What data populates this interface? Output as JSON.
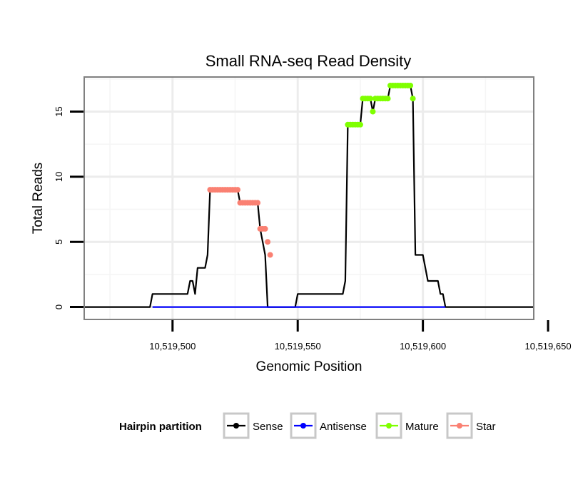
{
  "chart_data": {
    "type": "line",
    "title": "Small RNA-seq Read Density",
    "xlabel": "Genomic Position",
    "ylabel": "Total Reads",
    "xlim": [
      10519465,
      10519644
    ],
    "ylim": [
      -0.9,
      17.6
    ],
    "x_ticks": [
      10519500,
      10519550,
      10519600,
      10519650
    ],
    "x_tick_labels": [
      "10,519,500",
      "10,519,550",
      "10,519,600",
      "10,519,650"
    ],
    "y_ticks": [
      0,
      5,
      10,
      15
    ],
    "y_tick_labels": [
      "0",
      "5",
      "10",
      "15"
    ],
    "grid": true,
    "legend": {
      "title": "Hairpin partition",
      "position": "bottom",
      "entries": [
        "Sense",
        "Antisense",
        "Mature",
        "Star"
      ]
    },
    "series": [
      {
        "name": "Sense",
        "color": "#000000",
        "marker": "none",
        "points": [
          [
            10519465,
            0
          ],
          [
            10519491,
            0
          ],
          [
            10519492,
            1
          ],
          [
            10519506,
            1
          ],
          [
            10519507,
            2
          ],
          [
            10519508,
            2
          ],
          [
            10519509,
            1
          ],
          [
            10519510,
            3
          ],
          [
            10519513,
            3
          ],
          [
            10519514,
            4
          ],
          [
            10519515,
            9
          ],
          [
            10519526,
            9
          ],
          [
            10519527,
            8
          ],
          [
            10519534,
            8
          ],
          [
            10519535,
            6
          ],
          [
            10519536,
            5
          ],
          [
            10519537,
            4
          ],
          [
            10519538,
            0
          ],
          [
            10519549,
            0
          ],
          [
            10519550,
            1
          ],
          [
            10519568,
            1
          ],
          [
            10519569,
            2
          ],
          [
            10519570,
            14
          ],
          [
            10519575,
            14
          ],
          [
            10519576,
            16
          ],
          [
            10519579,
            16
          ],
          [
            10519580,
            15
          ],
          [
            10519581,
            16
          ],
          [
            10519586,
            16
          ],
          [
            10519587,
            17
          ],
          [
            10519595,
            17
          ],
          [
            10519596,
            16
          ],
          [
            10519597,
            4
          ],
          [
            10519600,
            4
          ],
          [
            10519602,
            2
          ],
          [
            10519606,
            2
          ],
          [
            10519607,
            1
          ],
          [
            10519608,
            1
          ],
          [
            10519609,
            0
          ],
          [
            10519644,
            0
          ]
        ]
      },
      {
        "name": "Antisense",
        "color": "#0000ff",
        "marker": "none",
        "points": [
          [
            10519492,
            0
          ],
          [
            10519609,
            0
          ]
        ]
      },
      {
        "name": "Mature",
        "color": "#7fff00",
        "marker": "point",
        "points": [
          [
            10519570,
            14
          ],
          [
            10519571,
            14
          ],
          [
            10519572,
            14
          ],
          [
            10519573,
            14
          ],
          [
            10519574,
            14
          ],
          [
            10519575,
            14
          ],
          [
            10519576,
            16
          ],
          [
            10519577,
            16
          ],
          [
            10519578,
            16
          ],
          [
            10519579,
            16
          ],
          [
            10519580,
            15
          ],
          [
            10519581,
            16
          ],
          [
            10519582,
            16
          ],
          [
            10519583,
            16
          ],
          [
            10519584,
            16
          ],
          [
            10519585,
            16
          ],
          [
            10519586,
            16
          ],
          [
            10519587,
            17
          ],
          [
            10519588,
            17
          ],
          [
            10519589,
            17
          ],
          [
            10519590,
            17
          ],
          [
            10519591,
            17
          ],
          [
            10519592,
            17
          ],
          [
            10519593,
            17
          ],
          [
            10519594,
            17
          ],
          [
            10519595,
            17
          ],
          [
            10519596,
            16
          ]
        ]
      },
      {
        "name": "Star",
        "color": "#fa8072",
        "marker": "point",
        "points": [
          [
            10519515,
            9
          ],
          [
            10519516,
            9
          ],
          [
            10519517,
            9
          ],
          [
            10519518,
            9
          ],
          [
            10519519,
            9
          ],
          [
            10519520,
            9
          ],
          [
            10519521,
            9
          ],
          [
            10519522,
            9
          ],
          [
            10519523,
            9
          ],
          [
            10519524,
            9
          ],
          [
            10519525,
            9
          ],
          [
            10519526,
            9
          ],
          [
            10519527,
            8
          ],
          [
            10519528,
            8
          ],
          [
            10519529,
            8
          ],
          [
            10519530,
            8
          ],
          [
            10519531,
            8
          ],
          [
            10519532,
            8
          ],
          [
            10519533,
            8
          ],
          [
            10519534,
            8
          ],
          [
            10519535,
            6
          ],
          [
            10519536,
            6
          ],
          [
            10519537,
            6
          ],
          [
            10519538,
            5
          ],
          [
            10519539,
            4
          ]
        ]
      }
    ]
  }
}
